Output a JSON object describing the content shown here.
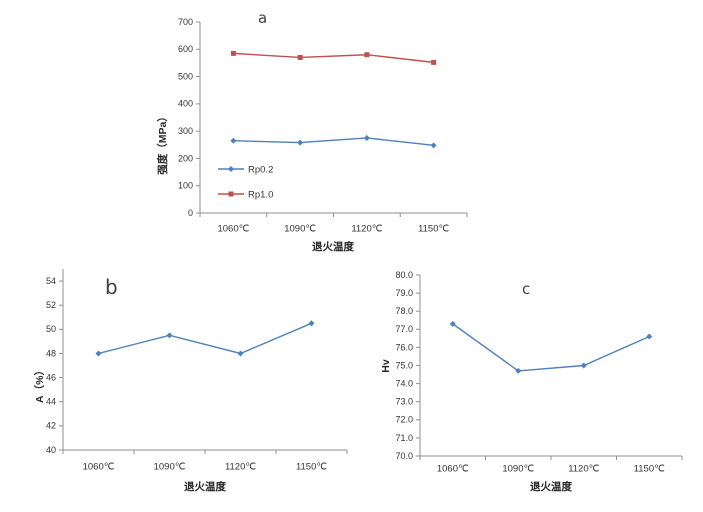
{
  "colors": {
    "series_blue": "#4f81bd",
    "series_red": "#c0504d",
    "axis_line": "#8f8f8f",
    "label_text": "#333333",
    "panel_letter": "#404040"
  },
  "chart_data": [
    {
      "id": "a",
      "type": "line",
      "panel_label": "a",
      "categories": [
        "1060℃",
        "1090℃",
        "1120℃",
        "1150℃"
      ],
      "series": [
        {
          "name": "Rp0.2",
          "values": [
            265,
            258,
            275,
            248
          ],
          "color": "#4f81bd",
          "marker": "diamond"
        },
        {
          "name": "Rp1.0",
          "values": [
            585,
            570,
            580,
            552
          ],
          "color": "#c0504d",
          "marker": "square"
        }
      ],
      "xlabel": "退火温度",
      "ylabel": "强度（MPa）",
      "ylim": [
        0,
        700
      ],
      "ytick_step": 100,
      "ytick_decimals": 0,
      "grid": false,
      "legend": true,
      "legend_position": "inside-lower-left"
    },
    {
      "id": "b",
      "type": "line",
      "panel_label": "b",
      "categories": [
        "1060℃",
        "1090℃",
        "1120℃",
        "1150℃"
      ],
      "series": [
        {
          "values": [
            48,
            49.5,
            48,
            50.5
          ],
          "color": "#4f81bd",
          "marker": "diamond"
        }
      ],
      "xlabel": "退火温度",
      "ylabel": "A（%）",
      "ylim": [
        40,
        55
      ],
      "ytick_step": 2,
      "ytick_max": 54,
      "ytick_decimals": 0,
      "grid": false,
      "legend": false
    },
    {
      "id": "c",
      "type": "line",
      "panel_label": "c",
      "categories": [
        "1060℃",
        "1090℃",
        "1120℃",
        "1150℃"
      ],
      "series": [
        {
          "values": [
            77.3,
            74.7,
            75.0,
            76.6
          ],
          "color": "#4f81bd",
          "marker": "diamond"
        }
      ],
      "xlabel": "退火温度",
      "ylabel": "Hv",
      "ylim": [
        70,
        80
      ],
      "ytick_step": 1,
      "ytick_decimals": 1,
      "grid": false,
      "legend": false
    }
  ]
}
